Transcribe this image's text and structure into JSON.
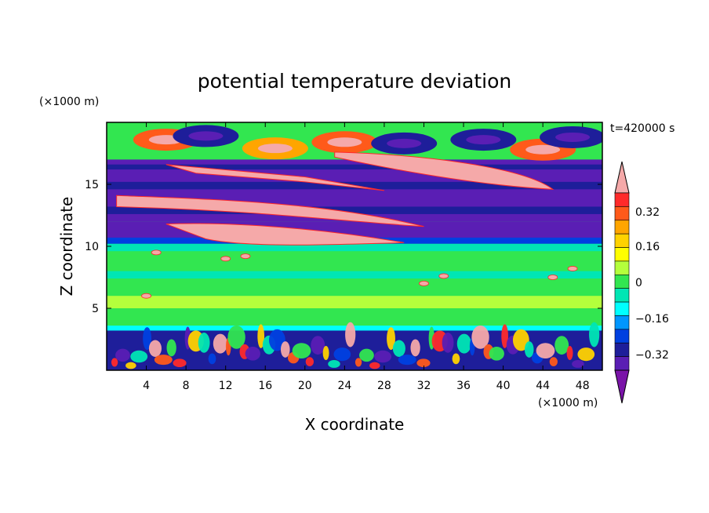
{
  "chart_data": {
    "type": "heatmap",
    "title": "potential temperature deviation",
    "xlabel": "X coordinate",
    "ylabel": "Z coordinate",
    "x_unit": "(×1000 m)",
    "y_unit": "(×1000 m)",
    "time_label": "t=420000 s",
    "xlim": [
      0,
      50
    ],
    "ylim": [
      0,
      20
    ],
    "x_ticks": [
      "4",
      "8",
      "12",
      "16",
      "20",
      "24",
      "28",
      "32",
      "36",
      "40",
      "44",
      "48"
    ],
    "x_tick_values": [
      4,
      8,
      12,
      16,
      20,
      24,
      28,
      32,
      36,
      40,
      44,
      48
    ],
    "y_ticks": [
      "5",
      "10",
      "15"
    ],
    "y_tick_values": [
      5,
      10,
      15
    ],
    "colorbar": {
      "labels": [
        "0.32",
        "0.16",
        "0",
        "−0.16",
        "−0.32"
      ],
      "levels": [
        0.32,
        0.16,
        0,
        -0.16,
        -0.32
      ],
      "colors_top_to_bottom": [
        "#f5a9a9",
        "#ff2a2a",
        "#ff5a1a",
        "#ffa500",
        "#ffd200",
        "#ffff00",
        "#b4ff3c",
        "#32e650",
        "#00e6b4",
        "#00ffff",
        "#0096ff",
        "#0040e0",
        "#1e1e9a",
        "#5a1eb4",
        "#7a14a8"
      ]
    },
    "bands": [
      {
        "z_range": [
          17.0,
          20.0
        ],
        "description_color": "#32e650"
      },
      {
        "z_range": [
          16.0,
          17.0
        ],
        "description_color": "#5a1eb4"
      },
      {
        "z_range": [
          12.0,
          16.0
        ],
        "description_color": "#5a1eb4"
      },
      {
        "z_range": [
          10.5,
          12.0
        ],
        "description_color": "#1e1e9a"
      },
      {
        "z_range": [
          3.5,
          10.5
        ],
        "description_color": "#32e650"
      },
      {
        "z_range": [
          0.0,
          3.5
        ],
        "description_color": "#1e1e9a"
      }
    ]
  }
}
